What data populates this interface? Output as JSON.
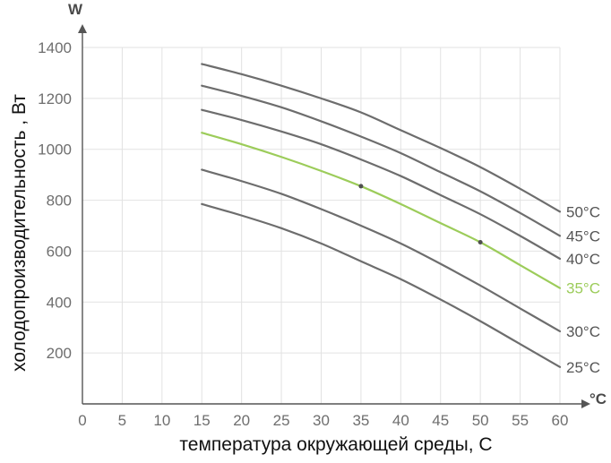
{
  "chart_data": {
    "type": "line",
    "xlabel": "температура окружающей среды, С",
    "ylabel": "холодопроизводительность , Вт",
    "x_unit": "°C",
    "y_unit": "W",
    "xlim": [
      0,
      60
    ],
    "ylim": [
      0,
      1400
    ],
    "xticks": [
      0,
      5,
      10,
      15,
      20,
      25,
      30,
      35,
      40,
      45,
      50,
      55,
      60
    ],
    "yticks": [
      200,
      400,
      600,
      800,
      1000,
      1200,
      1400
    ],
    "grid": true,
    "series": [
      {
        "name": "50°C",
        "color": "#6d6d6d",
        "x": [
          15,
          20,
          25,
          30,
          35,
          40,
          45,
          50,
          55,
          60
        ],
        "y": [
          1335,
          1295,
          1250,
          1200,
          1145,
          1075,
          1005,
          930,
          845,
          755
        ]
      },
      {
        "name": "45°C",
        "color": "#6d6d6d",
        "x": [
          15,
          20,
          25,
          30,
          35,
          40,
          45,
          50,
          55,
          60
        ],
        "y": [
          1250,
          1210,
          1165,
          1110,
          1050,
          985,
          910,
          835,
          750,
          660
        ]
      },
      {
        "name": "40°C",
        "color": "#6d6d6d",
        "x": [
          15,
          20,
          25,
          30,
          35,
          40,
          45,
          50,
          55,
          60
        ],
        "y": [
          1155,
          1115,
          1070,
          1020,
          960,
          895,
          820,
          745,
          660,
          570
        ]
      },
      {
        "name": "35°C",
        "color": "#9ccc5a",
        "x": [
          15,
          20,
          25,
          30,
          35,
          40,
          45,
          50,
          55,
          60
        ],
        "y": [
          1065,
          1020,
          970,
          915,
          855,
          785,
          710,
          635,
          545,
          455
        ]
      },
      {
        "name": "30°C",
        "color": "#6d6d6d",
        "x": [
          15,
          20,
          25,
          30,
          35,
          40,
          45,
          50,
          55,
          60
        ],
        "y": [
          920,
          875,
          825,
          765,
          700,
          630,
          550,
          465,
          375,
          285
        ]
      },
      {
        "name": "25°C",
        "color": "#6d6d6d",
        "x": [
          15,
          20,
          25,
          30,
          35,
          40,
          45,
          50,
          55,
          60
        ],
        "y": [
          785,
          740,
          690,
          630,
          560,
          490,
          410,
          325,
          235,
          145
        ]
      }
    ],
    "markers": [
      {
        "x": 35,
        "y": 855
      },
      {
        "x": 50,
        "y": 635
      }
    ]
  }
}
